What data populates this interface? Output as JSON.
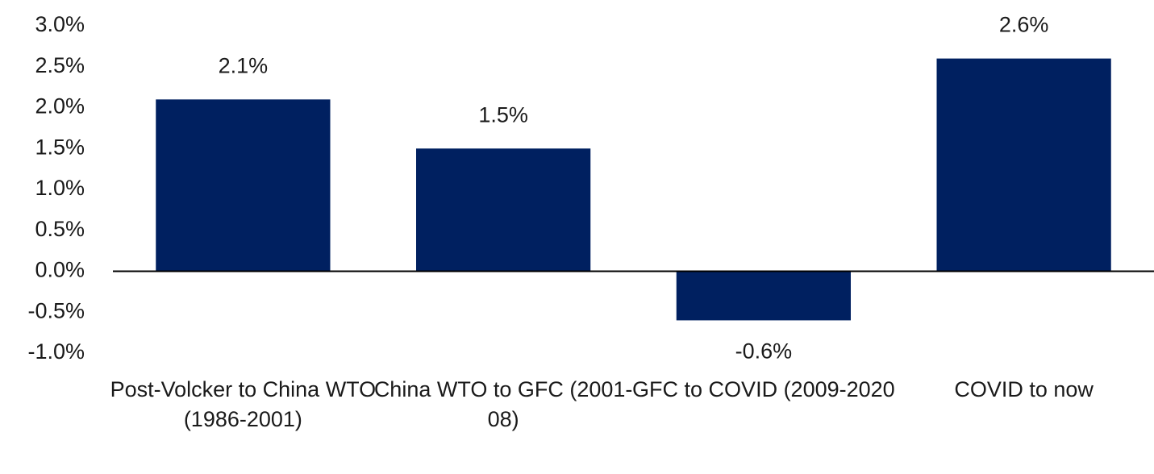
{
  "chart_data": {
    "type": "bar",
    "categories": [
      "Post-Volcker to China WTO (1986-2001)",
      "China WTO to GFC (2001-08)",
      "GFC to COVID (2009-2020",
      "COVID to now"
    ],
    "values": [
      2.1,
      1.5,
      -0.6,
      2.6
    ],
    "value_labels": [
      "2.1%",
      "1.5%",
      "-0.6%",
      "2.6%"
    ],
    "color": "#002060",
    "ylim": [
      -1,
      3
    ],
    "yticks": [
      {
        "value": -1,
        "label": "-1.0%"
      },
      {
        "value": -0.5,
        "label": "-0.5%"
      },
      {
        "value": 0,
        "label": "0.0%"
      },
      {
        "value": 0.5,
        "label": "0.5%"
      },
      {
        "value": 1,
        "label": "1.0%"
      },
      {
        "value": 1.5,
        "label": "1.5%"
      },
      {
        "value": 2,
        "label": "2.0%"
      },
      {
        "value": 2.5,
        "label": "2.5%"
      },
      {
        "value": 3,
        "label": "3.0%"
      }
    ],
    "grid": false
  }
}
